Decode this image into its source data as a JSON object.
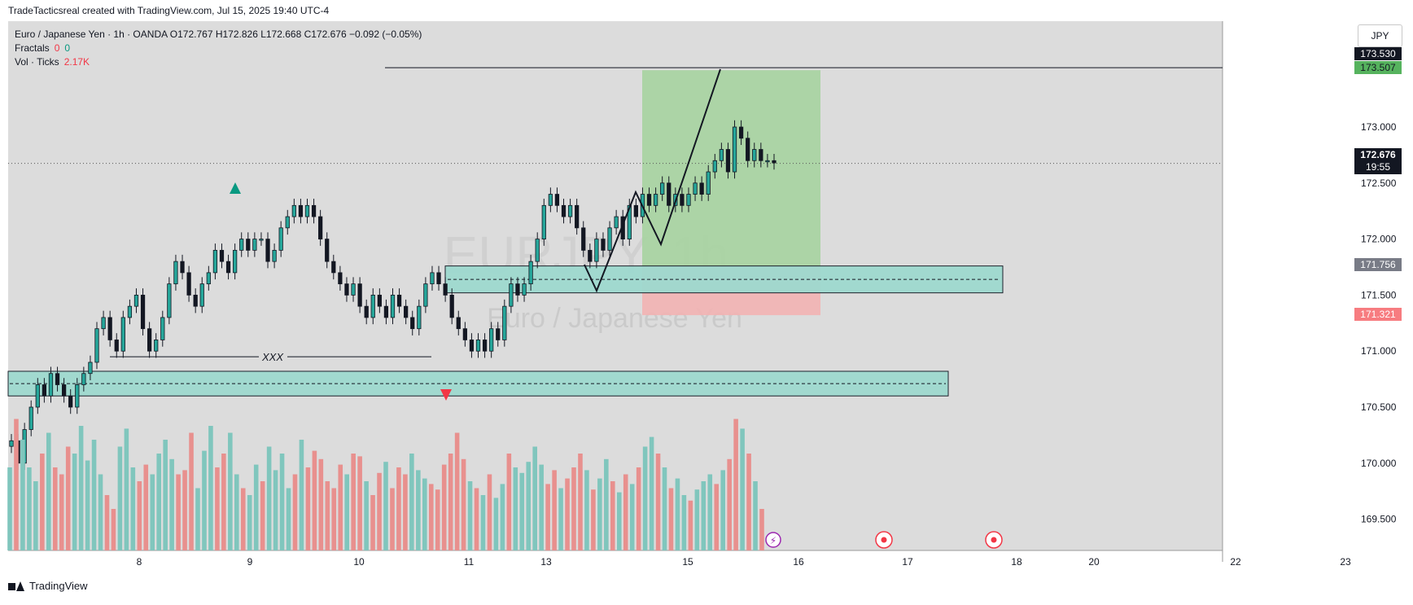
{
  "credit": "TradeTacticsreal created with TradingView.com, Jul 15, 2025 19:40 UTC-4",
  "legend": {
    "symbol_line": "Euro / Japanese Yen · 1h · OANDA  O172.767  H172.826  L172.668  C172.676  −0.092 (−0.05%)",
    "fractals_label": "Fractals",
    "fractals_up": "0",
    "fractals_down": "0",
    "vol_label": "Vol · Ticks",
    "vol_value": "2.17K"
  },
  "currency_button": "JPY",
  "watermark": {
    "symbol": "EURJPY, 1h",
    "name": "Euro / Japanese Yen"
  },
  "footer_brand": "TradingView",
  "annotation_text": "XXX",
  "colors": {
    "up": "#26a69a",
    "down": "#ef5350",
    "candle": "#131722",
    "zone_fill": "#9ed9cf",
    "target_fill": "#a9d3a2",
    "stop_fill": "#f2b3b3",
    "background": "#dcdcdc"
  },
  "chart_data": {
    "type": "candlestick",
    "symbol": "EUR/JPY",
    "timeframe": "1h",
    "y_axis": {
      "ticks": [
        "173.000",
        "172.500",
        "172.000",
        "171.500",
        "171.000",
        "170.500",
        "170.000",
        "169.500"
      ],
      "range": [
        169.3,
        173.7
      ]
    },
    "x_axis": {
      "ticks": [
        "8",
        "9",
        "10",
        "11",
        "13",
        "15",
        "16",
        "17",
        "18",
        "20",
        "22",
        "23"
      ]
    },
    "price_labels": [
      {
        "text": "173.530",
        "kind": "level"
      },
      {
        "text": "173.507",
        "kind": "target"
      },
      {
        "text": "172.676",
        "kind": "last",
        "sub": "19:55"
      },
      {
        "text": "171.756",
        "kind": "entry"
      },
      {
        "text": "171.321",
        "kind": "stop"
      }
    ],
    "levels": {
      "horizontal_line": 173.53,
      "current_price": 172.676,
      "target": 173.507,
      "entry": 171.756,
      "stop": 171.321,
      "zone_upper": [
        171.52,
        171.76
      ],
      "zone_lower": [
        170.6,
        170.82
      ],
      "xxx_line": 170.95
    },
    "ohlc_last": {
      "open": 172.767,
      "high": 172.826,
      "low": 172.668,
      "close": 172.676,
      "change": -0.092,
      "change_pct": "-0.05%"
    },
    "closes": [
      170.2,
      170.0,
      170.3,
      170.5,
      170.7,
      170.6,
      170.8,
      170.7,
      170.6,
      170.5,
      170.7,
      170.8,
      170.9,
      171.2,
      171.3,
      171.1,
      171.0,
      171.3,
      171.4,
      171.5,
      171.2,
      171.0,
      171.1,
      171.3,
      171.6,
      171.8,
      171.7,
      171.5,
      171.4,
      171.6,
      171.7,
      171.9,
      171.8,
      171.7,
      171.9,
      172.0,
      171.9,
      172.0,
      172.0,
      171.8,
      171.9,
      172.1,
      172.2,
      172.3,
      172.2,
      172.3,
      172.2,
      172.0,
      171.8,
      171.7,
      171.6,
      171.5,
      171.6,
      171.4,
      171.3,
      171.5,
      171.4,
      171.3,
      171.5,
      171.4,
      171.3,
      171.2,
      171.4,
      171.6,
      171.7,
      171.6,
      171.5,
      171.3,
      171.2,
      171.1,
      171.0,
      171.1,
      171.0,
      171.2,
      171.1,
      171.4,
      171.6,
      171.5,
      171.6,
      171.8,
      172.0,
      172.3,
      172.4,
      172.3,
      172.2,
      172.3,
      172.1,
      171.9,
      171.8,
      172.0,
      171.9,
      172.1,
      172.2,
      172.0,
      172.3,
      172.2,
      172.4,
      172.3,
      172.4,
      172.5,
      172.3,
      172.4,
      172.3,
      172.4,
      172.5,
      172.4,
      172.6,
      172.7,
      172.8,
      172.6,
      173.0,
      172.9,
      172.7,
      172.8,
      172.7,
      172.7,
      172.68
    ],
    "volumes": [
      60,
      95,
      80,
      60,
      50,
      70,
      85,
      60,
      55,
      75,
      70,
      90,
      65,
      80,
      55,
      40,
      30,
      75,
      88,
      60,
      50,
      62,
      55,
      70,
      80,
      66,
      55,
      58,
      85,
      45,
      72,
      90,
      60,
      70,
      85,
      55,
      45,
      40,
      62,
      50,
      75,
      58,
      70,
      45,
      55,
      80,
      60,
      72,
      66,
      50,
      45,
      62,
      55,
      70,
      68,
      50,
      40,
      56,
      64,
      45,
      60,
      55,
      70,
      58,
      52,
      48,
      44,
      62,
      70,
      85,
      66,
      50,
      45,
      40,
      55,
      38,
      48,
      70,
      60,
      56,
      64,
      75,
      62,
      48,
      58,
      45,
      52,
      60,
      70,
      58,
      44,
      52,
      66,
      50,
      42,
      55,
      48,
      60,
      75,
      82,
      70,
      60,
      45,
      52,
      40,
      36,
      44,
      50,
      55,
      48,
      58,
      66,
      95,
      88,
      70,
      50,
      30
    ]
  }
}
